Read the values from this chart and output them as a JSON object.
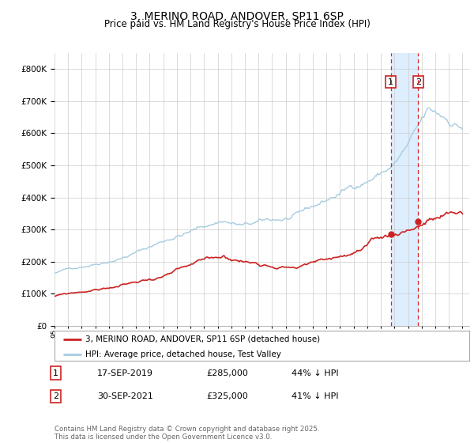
{
  "title": "3, MERINO ROAD, ANDOVER, SP11 6SP",
  "subtitle": "Price paid vs. HM Land Registry's House Price Index (HPI)",
  "legend_entry1": "3, MERINO ROAD, ANDOVER, SP11 6SP (detached house)",
  "legend_entry2": "HPI: Average price, detached house, Test Valley",
  "annotation1_date": "17-SEP-2019",
  "annotation1_price": "£285,000",
  "annotation1_hpi": "44% ↓ HPI",
  "annotation2_date": "30-SEP-2021",
  "annotation2_price": "£325,000",
  "annotation2_hpi": "41% ↓ HPI",
  "footer": "Contains HM Land Registry data © Crown copyright and database right 2025.\nThis data is licensed under the Open Government Licence v3.0.",
  "hpi_color": "#a8cce0",
  "price_color": "#cc2222",
  "vline_color": "#dd2222",
  "shade_color": "#ddeeff",
  "marker_color": "#cc2222",
  "grid_color": "#cccccc",
  "bg_color": "#ffffff",
  "ylim": [
    0,
    850000
  ],
  "yticks": [
    0,
    100000,
    200000,
    300000,
    400000,
    500000,
    600000,
    700000,
    800000
  ],
  "ytick_labels": [
    "£0",
    "£100K",
    "£200K",
    "£300K",
    "£400K",
    "£500K",
    "£600K",
    "£700K",
    "£800K"
  ],
  "sale1_x": 2019.72,
  "sale1_y": 285000,
  "sale2_x": 2021.75,
  "sale2_y": 325000,
  "xmin": 1995.0,
  "xmax": 2025.5
}
